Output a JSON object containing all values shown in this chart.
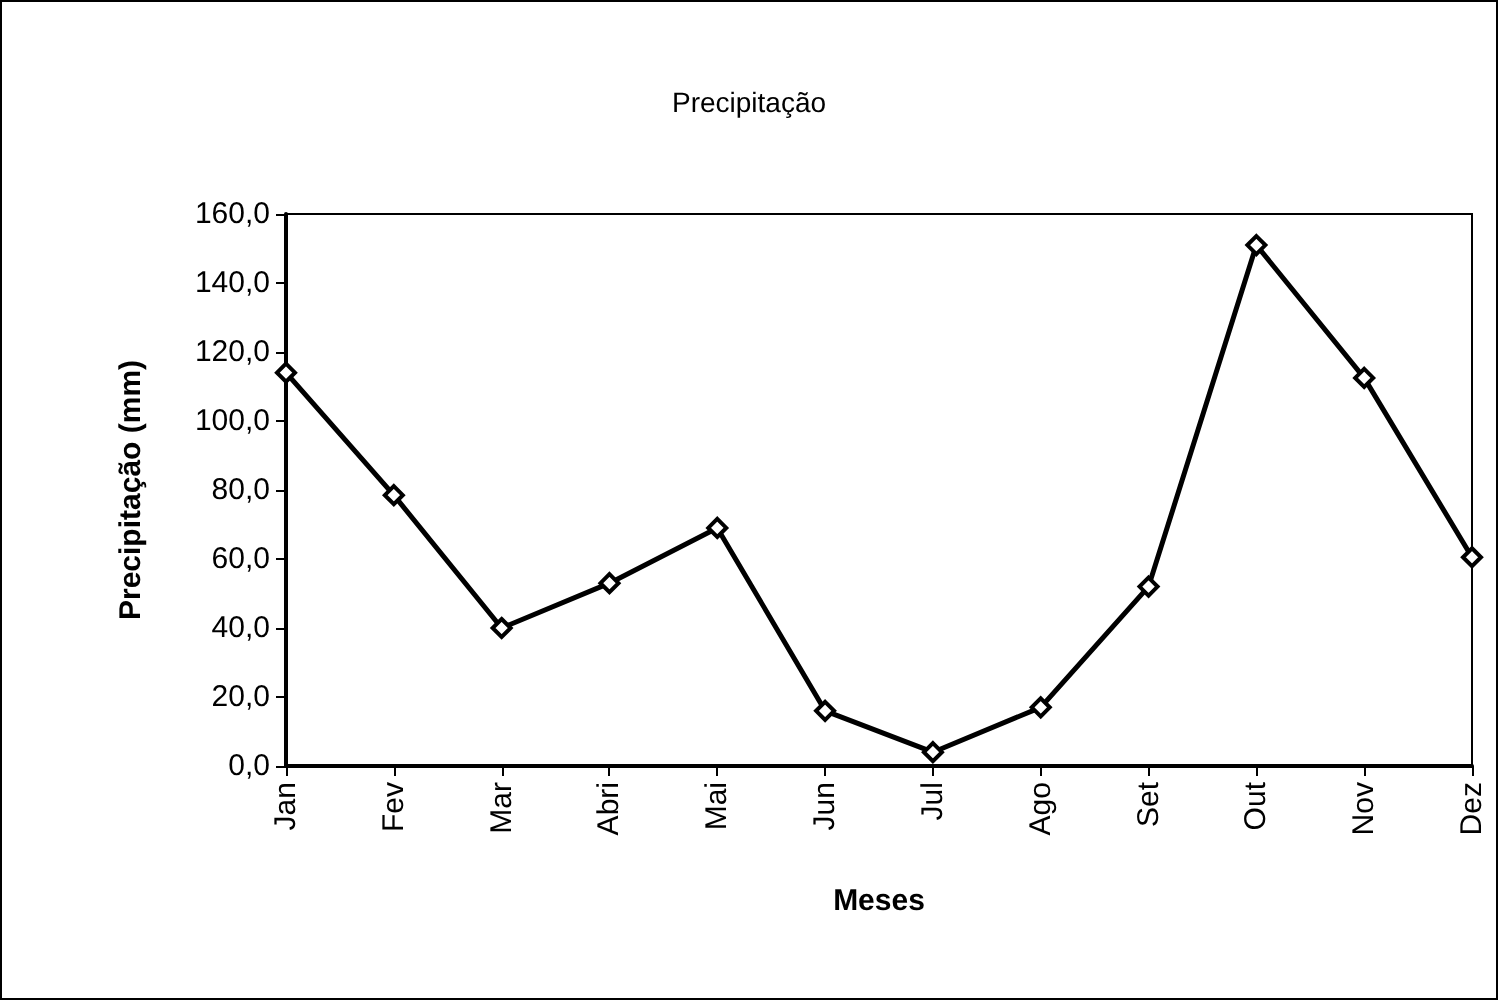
{
  "chart_data": {
    "type": "line",
    "title": "Precipitação",
    "xlabel": "Meses",
    "ylabel": "Precipitação (mm)",
    "categories": [
      "Jan",
      "Fev",
      "Mar",
      "Abri",
      "Mai",
      "Jun",
      "Jul",
      "Ago",
      "Set",
      "Out",
      "Nov",
      "Dez"
    ],
    "series": [
      {
        "color": "#000000",
        "values": [
          114,
          78.5,
          40,
          53,
          69,
          16,
          4,
          17,
          52,
          151,
          112.5,
          60.5
        ]
      }
    ],
    "ylim": [
      0,
      160
    ],
    "yticks": [
      {
        "value": 0,
        "label": "0,0"
      },
      {
        "value": 20,
        "label": "20,0"
      },
      {
        "value": 40,
        "label": "40,0"
      },
      {
        "value": 60,
        "label": "60,0"
      },
      {
        "value": 80,
        "label": "80,0"
      },
      {
        "value": 100,
        "label": "100,0"
      },
      {
        "value": 120,
        "label": "120,0"
      },
      {
        "value": 140,
        "label": "140,0"
      },
      {
        "value": 160,
        "label": "160,0"
      }
    ],
    "marker": "diamond",
    "line_style": "solid",
    "grid": false
  }
}
